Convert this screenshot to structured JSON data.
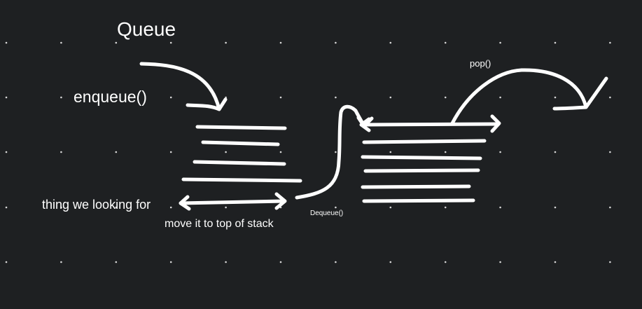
{
  "canvas": {
    "background": "#1e2022",
    "grid_dot_color": "#d8d8d8",
    "stroke_color": "#ffffff"
  },
  "labels": {
    "queue_title": "Queue",
    "enqueue": "enqueue()",
    "pop": "pop()",
    "dequeue": "Dequeue()",
    "target_item": "thing we looking for",
    "move_note": "move it to top of stack"
  }
}
